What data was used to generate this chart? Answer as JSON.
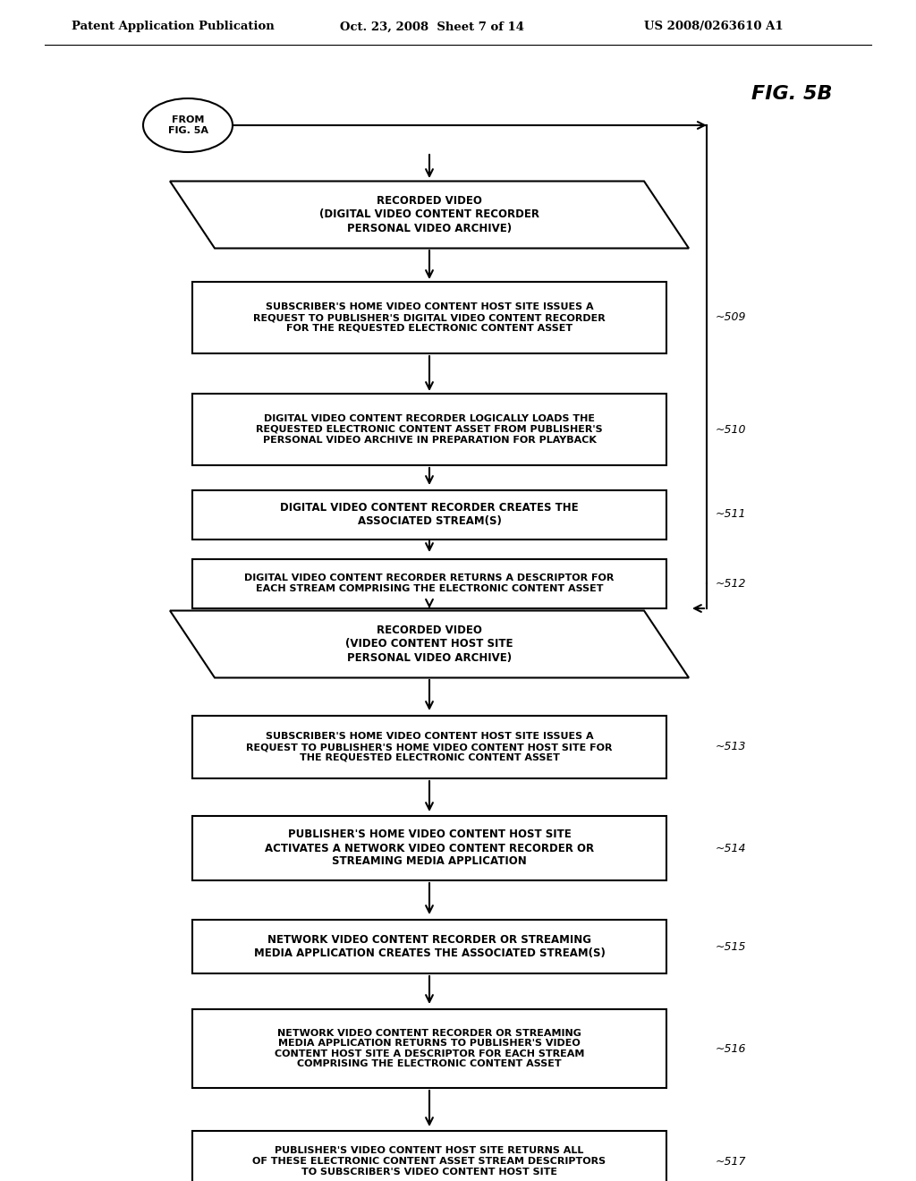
{
  "bg_color": "#ffffff",
  "header_left": "Patent Application Publication",
  "header_center": "Oct. 23, 2008  Sheet 7 of 14",
  "header_right": "US 2008/0263610 A1",
  "fig_label": "FIG. 5B",
  "from_label": "FROM\nFIG. 5A",
  "box509": "SUBSCRIBER'S HOME VIDEO CONTENT HOST SITE ISSUES A\nREQUEST TO PUBLISHER'S DIGITAL VIDEO CONTENT RECORDER\nFOR THE REQUESTED ELECTRONIC CONTENT ASSET",
  "box510": "DIGITAL VIDEO CONTENT RECORDER LOGICALLY LOADS THE\nREQUESTED ELECTRONIC CONTENT ASSET FROM PUBLISHER'S\nPERSONAL VIDEO ARCHIVE IN PREPARATION FOR PLAYBACK",
  "box511": "DIGITAL VIDEO CONTENT RECORDER CREATES THE\nASSOCIATED STREAM(S)",
  "box512": "DIGITAL VIDEO CONTENT RECORDER RETURNS A DESCRIPTOR FOR\nEACH STREAM COMPRISING THE ELECTRONIC CONTENT ASSET",
  "para1": "RECORDED VIDEO\n(DIGITAL VIDEO CONTENT RECORDER\nPERSONAL VIDEO ARCHIVE)",
  "para2": "RECORDED VIDEO\n(VIDEO CONTENT HOST SITE\nPERSONAL VIDEO ARCHIVE)",
  "box513": "SUBSCRIBER'S HOME VIDEO CONTENT HOST SITE ISSUES A\nREQUEST TO PUBLISHER'S HOME VIDEO CONTENT HOST SITE FOR\nTHE REQUESTED ELECTRONIC CONTENT ASSET",
  "box514": "PUBLISHER'S HOME VIDEO CONTENT HOST SITE\nACTIVATES A NETWORK VIDEO CONTENT RECORDER OR\nSTREAMING MEDIA APPLICATION",
  "box515": "NETWORK VIDEO CONTENT RECORDER OR STREAMING\nMEDIA APPLICATION CREATES THE ASSOCIATED STREAM(S)",
  "box516": "NETWORK VIDEO CONTENT RECORDER OR STREAMING\nMEDIA APPLICATION RETURNS TO PUBLISHER'S VIDEO\nCONTENT HOST SITE A DESCRIPTOR FOR EACH STREAM\nCOMPRISING THE ELECTRONIC CONTENT ASSET",
  "box517": "PUBLISHER'S VIDEO CONTENT HOST SITE RETURNS ALL\nOF THESE ELECTRONIC CONTENT ASSET STREAM DESCRIPTORS\nTO SUBSCRIBER'S VIDEO CONTENT HOST SITE"
}
